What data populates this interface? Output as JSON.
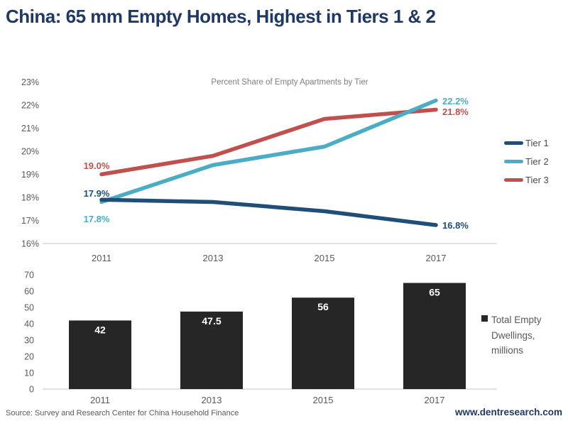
{
  "page": {
    "title": "China: 65 mm Empty Homes, Highest in Tiers 1 & 2",
    "source": "Source: Survey and Research Center for China Household Finance",
    "website": "www.dentresearch.com",
    "colors": {
      "title_navy": "#1F3864",
      "axis_text": "#595959",
      "axis_line": "#D9D9D9",
      "chart_title_gray": "#7F7F7F"
    }
  },
  "chart_data": [
    {
      "type": "line",
      "title": "Percent Share of Empty Apartments by Tier",
      "x_labels": [
        "2011",
        "2013",
        "2015",
        "2017"
      ],
      "ylim": [
        16,
        23
      ],
      "ytick_labels": [
        "16%",
        "17%",
        "18%",
        "19%",
        "20%",
        "21%",
        "22%",
        "23%"
      ],
      "grid": false,
      "legend_position": "right",
      "series": [
        {
          "name": "Tier 1",
          "color": "#1F4E79",
          "values": [
            17.9,
            17.8,
            17.4,
            16.8
          ],
          "first_label": "17.9%",
          "last_label": "16.8%"
        },
        {
          "name": "Tier 2",
          "color": "#4BACC6",
          "values": [
            17.8,
            19.4,
            20.2,
            22.2
          ],
          "first_label": "17.8%",
          "last_label": "22.2%"
        },
        {
          "name": "Tier 3",
          "color": "#C0504D",
          "values": [
            19.0,
            19.8,
            21.4,
            21.8
          ],
          "first_label": "19.0%",
          "last_label": "21.8%"
        }
      ]
    },
    {
      "type": "bar",
      "categories": [
        "2011",
        "2013",
        "2015",
        "2017"
      ],
      "values": [
        42,
        47.5,
        56,
        65
      ],
      "value_labels": [
        "42",
        "47.5",
        "56",
        "65"
      ],
      "color": "#262626",
      "value_label_color": "#FFFFFF",
      "ylim": [
        0,
        70
      ],
      "ytick_labels": [
        "0",
        "10",
        "20",
        "30",
        "40",
        "50",
        "60",
        "70"
      ],
      "legend": "Total Empty Dwellings, millions",
      "legend_position": "right"
    }
  ]
}
